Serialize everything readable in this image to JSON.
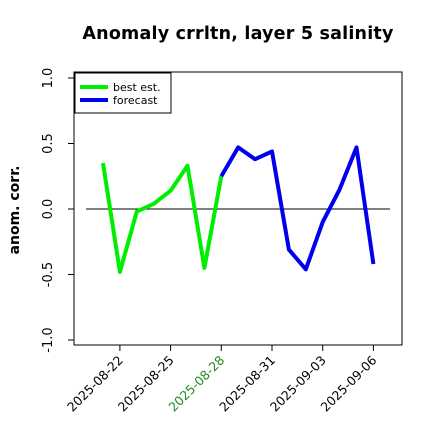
{
  "chart_data": {
    "type": "line",
    "title": "Anomaly crrltn, layer 5 salinity",
    "xlabel": "",
    "ylabel": "anom. corr.",
    "ylim": [
      -1.0,
      1.0
    ],
    "y_ticks": [
      "-1.0",
      "-0.5",
      "0.0",
      "0.5",
      "1.0"
    ],
    "x_tick_labels": [
      {
        "label": "2025-08-22",
        "color": "#000000"
      },
      {
        "label": "2025-08-25",
        "color": "#000000"
      },
      {
        "label": "2025-08-28",
        "color": "#228b22"
      },
      {
        "label": "2025-08-31",
        "color": "#000000"
      },
      {
        "label": "2025-09-03",
        "color": "#000000"
      },
      {
        "label": "2025-09-06",
        "color": "#000000"
      }
    ],
    "x_dates": [
      "2025-08-21",
      "2025-08-22",
      "2025-08-23",
      "2025-08-24",
      "2025-08-25",
      "2025-08-26",
      "2025-08-27",
      "2025-08-28",
      "2025-08-29",
      "2025-08-30",
      "2025-08-31",
      "2025-09-01",
      "2025-09-02",
      "2025-09-03",
      "2025-09-04",
      "2025-09-05",
      "2025-09-06"
    ],
    "zero_line": 0.0,
    "legend": {
      "placement": "top-left",
      "entries": [
        {
          "label": "best est.",
          "color": "#00ee00"
        },
        {
          "label": "forecast",
          "color": "#0000ee"
        }
      ]
    },
    "series": [
      {
        "name": "best est.",
        "color": "#00ee00",
        "x": [
          "2025-08-21",
          "2025-08-22",
          "2025-08-23",
          "2025-08-24",
          "2025-08-25",
          "2025-08-26",
          "2025-08-27",
          "2025-08-28"
        ],
        "values": [
          0.35,
          -0.48,
          -0.02,
          0.04,
          0.14,
          0.33,
          -0.45,
          0.25
        ]
      },
      {
        "name": "forecast",
        "color": "#0000ee",
        "x": [
          "2025-08-28",
          "2025-08-29",
          "2025-08-30",
          "2025-08-31",
          "2025-09-01",
          "2025-09-02",
          "2025-09-03",
          "2025-09-04",
          "2025-09-05",
          "2025-09-06"
        ],
        "values": [
          0.25,
          0.47,
          0.38,
          0.44,
          -0.31,
          -0.46,
          -0.1,
          0.15,
          0.47,
          -0.42
        ]
      }
    ],
    "grid": false
  }
}
